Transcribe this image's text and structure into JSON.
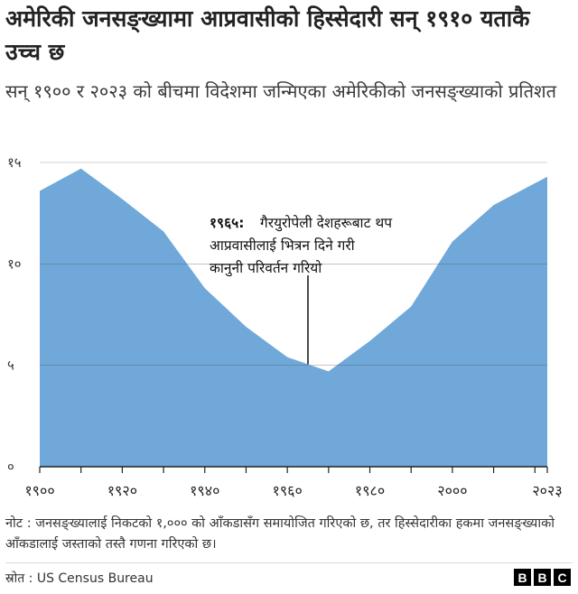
{
  "title": "अमेरिकी जनसङ्ख्यामा आप्रवासीको हिस्सेदारी सन् १९१० यताकै उच्च छ",
  "subtitle": "सन् १९०० र २०२३ को बीचमा विदेशमा जन्मिएका अमेरिकीको जनसङ्ख्याको प्रतिशत",
  "chart_data": {
    "type": "area",
    "x": [
      1900,
      1910,
      1920,
      1930,
      1940,
      1950,
      1960,
      1970,
      1980,
      1990,
      2000,
      2010,
      2023
    ],
    "values": [
      13.6,
      14.7,
      13.2,
      11.6,
      8.8,
      6.9,
      5.4,
      4.7,
      6.2,
      7.9,
      11.1,
      12.9,
      14.3
    ],
    "xlim": [
      1900,
      2023
    ],
    "ylim": [
      0,
      15
    ],
    "yticks": [
      0,
      5,
      10,
      15
    ],
    "ytick_labels": [
      "०",
      "५",
      "१०",
      "१५"
    ],
    "xticks": [
      1900,
      1920,
      1940,
      1960,
      1980,
      2000,
      2023
    ],
    "xtick_labels": [
      "१९००",
      "१९२०",
      "१९४०",
      "१९६०",
      "१९८०",
      "२०००",
      "२०२३"
    ],
    "grid": true,
    "fill_color": "#6fa8d9",
    "annotation": {
      "x": 1965,
      "year_label": "१९६५:",
      "lines": [
        "गैरयुरोपेली देशहरूबाट थप",
        "आप्रवासीलाई भित्रन दिने गरी",
        "कानुनी परिवर्तन गरियो"
      ]
    }
  },
  "note": "नोट : जनसङ्ख्यालाई निकटको १,००० को आँकडासँग समायोजित गरिएको छ, तर हिस्सेदारीका हकमा जनसङ्ख्याको आँकडालाई जस्ताको तस्तै गणना गरिएको छ।",
  "source": "स्रोत : US Census Bureau",
  "logo": [
    "B",
    "B",
    "C"
  ]
}
